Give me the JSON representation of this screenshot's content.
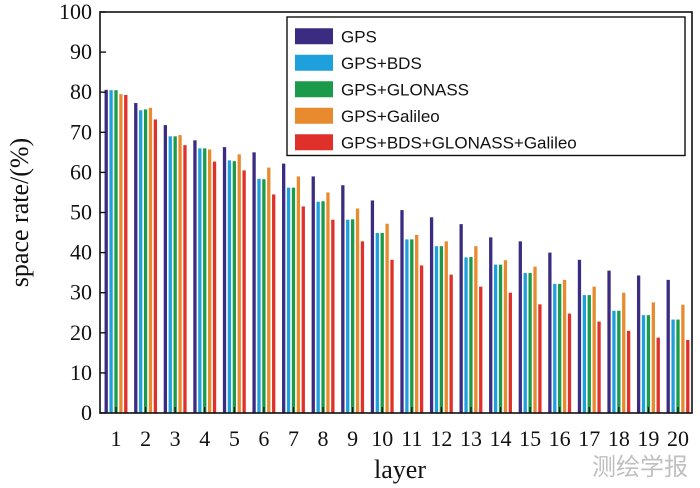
{
  "chart_data": {
    "type": "bar",
    "title": "",
    "xlabel": "layer",
    "ylabel": "space rate/(%)",
    "ylim": [
      0,
      100
    ],
    "yticks": [
      0,
      10,
      20,
      30,
      40,
      50,
      60,
      70,
      80,
      90,
      100
    ],
    "grid": false,
    "legend_position": "top-right",
    "categories": [
      "1",
      "2",
      "3",
      "4",
      "5",
      "6",
      "7",
      "8",
      "9",
      "10",
      "11",
      "12",
      "13",
      "14",
      "15",
      "16",
      "17",
      "18",
      "19",
      "20"
    ],
    "series": [
      {
        "name": "GPS",
        "color": "#3b2c82",
        "values": [
          80.6,
          77.3,
          71.8,
          68.0,
          66.3,
          65.0,
          62.2,
          59.0,
          56.8,
          53.0,
          50.6,
          48.8,
          47.1,
          43.8,
          42.8,
          40.0,
          38.2,
          35.5,
          34.3,
          33.2
        ]
      },
      {
        "name": "GPS+BDS",
        "color": "#1ea0dc",
        "values": [
          80.5,
          75.5,
          69.0,
          66.0,
          63.0,
          58.4,
          56.2,
          52.7,
          48.2,
          44.9,
          43.3,
          41.6,
          38.8,
          37.0,
          34.9,
          32.2,
          29.4,
          25.5,
          24.4,
          23.3
        ]
      },
      {
        "name": "GPS+GLONASS",
        "color": "#1a9a4a",
        "values": [
          80.5,
          75.7,
          69.0,
          66.0,
          62.8,
          58.3,
          56.2,
          52.8,
          48.3,
          44.9,
          43.3,
          41.6,
          38.9,
          37.0,
          34.9,
          32.2,
          29.4,
          25.5,
          24.4,
          23.3
        ]
      },
      {
        "name": "GPS+Galileo",
        "color": "#e88a2e",
        "values": [
          79.5,
          76.1,
          69.3,
          65.7,
          64.5,
          61.2,
          59.0,
          55.0,
          51.0,
          47.2,
          44.4,
          42.8,
          41.6,
          38.1,
          36.5,
          33.2,
          31.5,
          30.0,
          27.6,
          27.0
        ]
      },
      {
        "name": "GPS+BDS+GLONASS+Galileo",
        "color": "#e0302a",
        "values": [
          79.3,
          73.2,
          66.8,
          62.7,
          60.5,
          54.5,
          51.5,
          48.2,
          42.8,
          38.2,
          36.8,
          34.5,
          31.5,
          30.0,
          27.1,
          24.8,
          22.8,
          20.5,
          18.8,
          18.2
        ]
      }
    ]
  },
  "watermark": "测绘学报"
}
